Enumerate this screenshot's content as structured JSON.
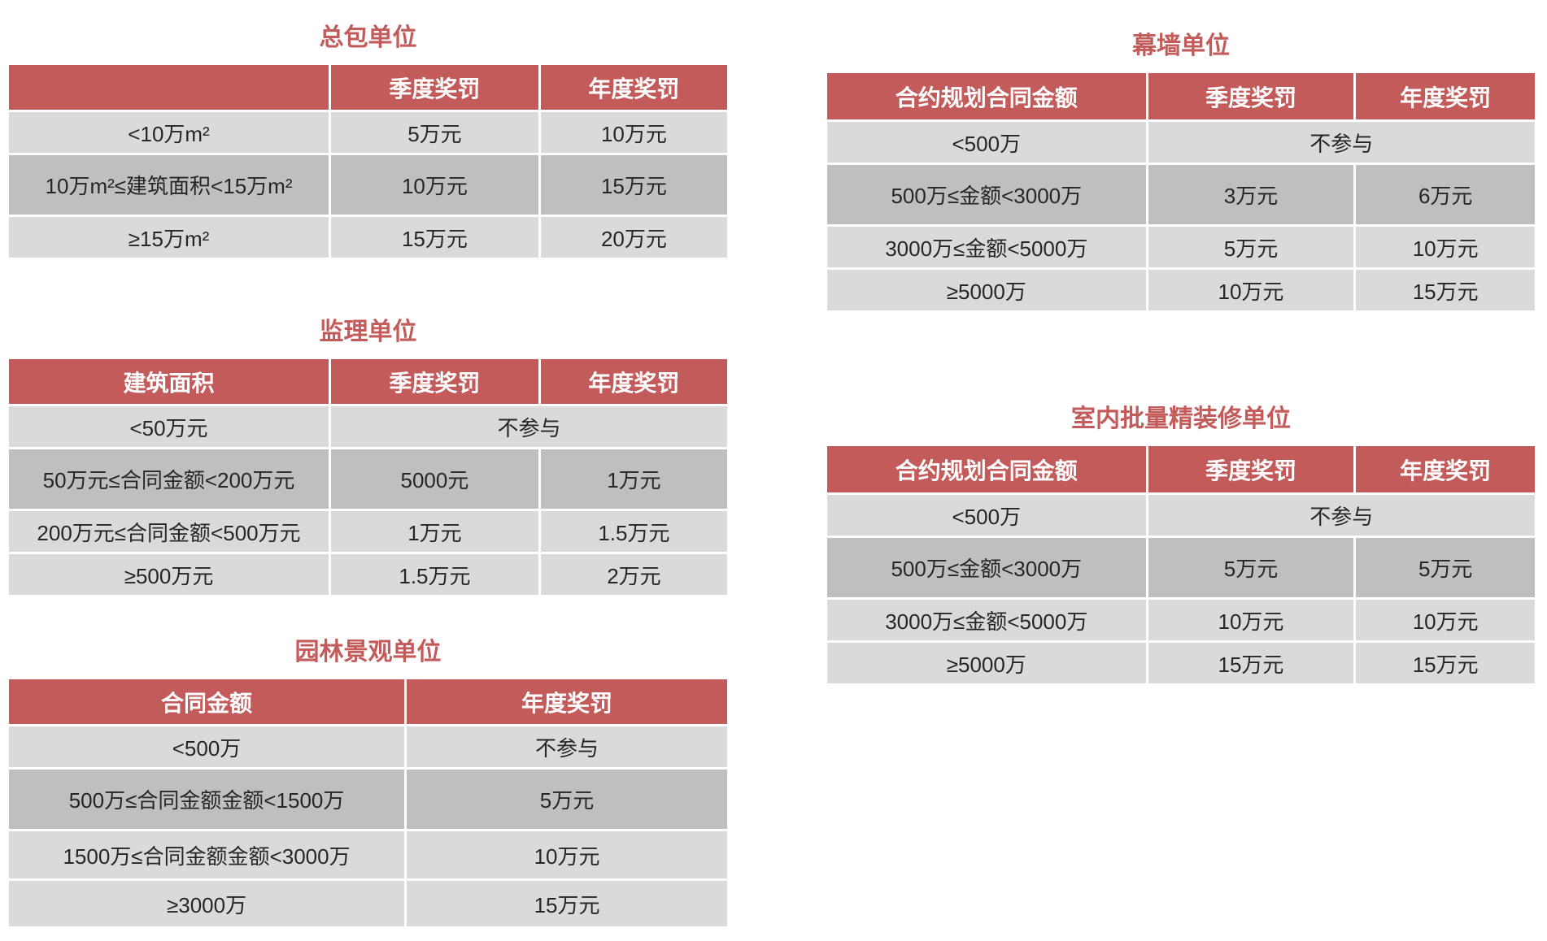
{
  "colors": {
    "accent_red": "#C35B5B",
    "row_light": "#DADADA",
    "row_dark": "#BFBFBF",
    "header_text": "#FFFFFF",
    "body_text": "#262626",
    "background": "#FFFFFF"
  },
  "tables": [
    {
      "id": "general-contractor",
      "title": "总包单位",
      "header": [
        "",
        "季度奖罚",
        "年度奖罚"
      ],
      "rows": [
        {
          "cells": [
            "<10万m²",
            "5万元",
            "10万元"
          ]
        },
        {
          "cells": [
            "10万m²≤建筑面积<15万m²",
            "10万元",
            "15万元"
          ],
          "dark": true
        },
        {
          "cells": [
            "≥15万m²",
            "15万元",
            "20万元"
          ]
        }
      ]
    },
    {
      "id": "supervision",
      "title": "监理单位",
      "header": [
        "建筑面积",
        "季度奖罚",
        "年度奖罚"
      ],
      "rows": [
        {
          "cells": [
            "<50万元",
            {
              "text": "不参与",
              "colspan": 2
            }
          ]
        },
        {
          "cells": [
            "50万元≤合同金额<200万元",
            "5000元",
            "1万元"
          ],
          "dark": true
        },
        {
          "cells": [
            "200万元≤合同金额<500万元",
            "1万元",
            "1.5万元"
          ]
        },
        {
          "cells": [
            "≥500万元",
            "1.5万元",
            "2万元"
          ]
        }
      ]
    },
    {
      "id": "landscape",
      "title": "园林景观单位",
      "header": [
        "合同金额",
        "年度奖罚"
      ],
      "rows": [
        {
          "cells": [
            "<500万",
            "不参与"
          ]
        },
        {
          "cells": [
            "500万≤合同金额金额<1500万",
            "5万元"
          ],
          "dark": true
        },
        {
          "cells": [
            "1500万≤合同金额金额<3000万",
            "10万元"
          ]
        },
        {
          "cells": [
            "≥3000万",
            "15万元"
          ]
        }
      ]
    },
    {
      "id": "curtain-wall",
      "title": "幕墙单位",
      "header": [
        "合约规划合同金额",
        "季度奖罚",
        "年度奖罚"
      ],
      "rows": [
        {
          "cells": [
            "<500万",
            {
              "text": "不参与",
              "colspan": 2
            }
          ]
        },
        {
          "cells": [
            "500万≤金额<3000万",
            "3万元",
            "6万元"
          ],
          "dark": true
        },
        {
          "cells": [
            "3000万≤金额<5000万",
            "5万元",
            "10万元"
          ]
        },
        {
          "cells": [
            "≥5000万",
            "10万元",
            "15万元"
          ]
        }
      ]
    },
    {
      "id": "interior-decoration",
      "title": "室内批量精装修单位",
      "header": [
        "合约规划合同金额",
        "季度奖罚",
        "年度奖罚"
      ],
      "rows": [
        {
          "cells": [
            "<500万",
            {
              "text": "不参与",
              "colspan": 2
            }
          ]
        },
        {
          "cells": [
            "500万≤金额<3000万",
            "5万元",
            "5万元"
          ],
          "dark": true
        },
        {
          "cells": [
            "3000万≤金额<5000万",
            "10万元",
            "10万元"
          ]
        },
        {
          "cells": [
            "≥5000万",
            "15万元",
            "15万元"
          ]
        }
      ]
    }
  ]
}
